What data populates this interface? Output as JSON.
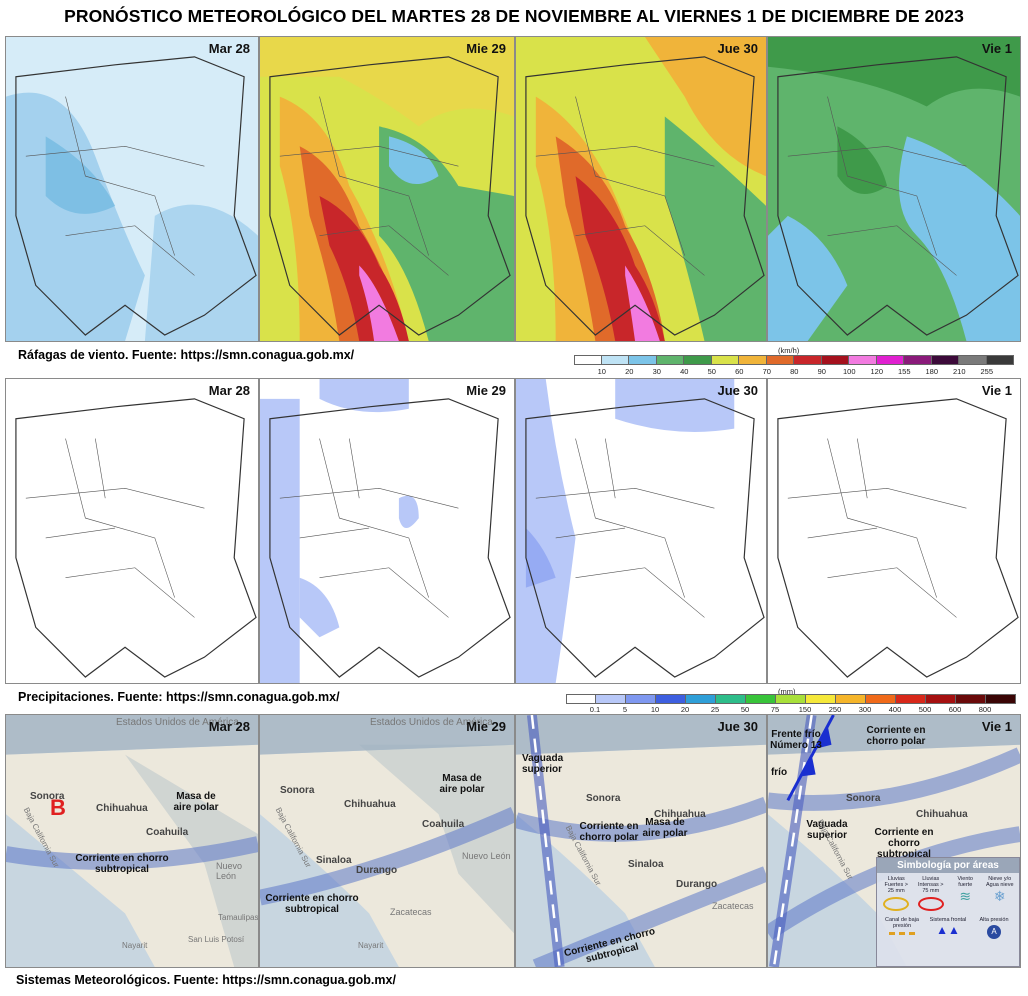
{
  "title": "PRONÓSTICO METEOROLÓGICO DEL MARTES 28 DE NOVIEMBRE AL VIERNES 1 DE DICIEMBRE DE 2023",
  "days": [
    "Mar 28",
    "Mie 29",
    "Jue 30",
    "Vie 1"
  ],
  "wind": {
    "caption": "Ráfagas de viento.  Fuente: https://smn.conagua.gob.mx/",
    "unit": "(km/h)",
    "ticks": [
      "10",
      "20",
      "30",
      "40",
      "50",
      "60",
      "70",
      "80",
      "90",
      "100",
      "120",
      "155",
      "180",
      "210",
      "255"
    ],
    "colors": [
      "#ffffff",
      "#bfe3f5",
      "#7cc4e8",
      "#5fb46c",
      "#3f9a4a",
      "#d9e24a",
      "#f0b43a",
      "#e06a2a",
      "#c8262a",
      "#a5111d",
      "#f27be0",
      "#e020d0",
      "#8a1a7a",
      "#3c0a3a",
      "#7a7a7a",
      "#3a3a3a"
    ]
  },
  "precip": {
    "caption": "Precipitaciones.  Fuente: https://smn.conagua.gob.mx/",
    "unit": "(mm)",
    "ticks": [
      "0.1",
      "5",
      "10",
      "20",
      "25",
      "50",
      "75",
      "150",
      "250",
      "300",
      "400",
      "500",
      "600",
      "800"
    ],
    "colors": [
      "#ffffff",
      "#b8c8f8",
      "#7f98f0",
      "#3e5fe0",
      "#2f9fd8",
      "#2ebd8a",
      "#38c43a",
      "#a8e03a",
      "#f5e83a",
      "#f5b52a",
      "#f06a1a",
      "#d8281a",
      "#a51010",
      "#6a0a0a",
      "#3a0505"
    ]
  },
  "systems": {
    "caption": "Sistemas Meteorológicos.    Fuente: https://smn.conagua.gob.mx/",
    "country": "Estados Unidos de América",
    "panel1": {
      "high": "B",
      "sonora": "Sonora",
      "chihuahua": "Chihuahua",
      "coahuila": "Coahuila",
      "nuevo_leon": "Nuevo León",
      "bcs": "Baja California Sur",
      "masa": "Masa de aire polar",
      "corriente": "Corriente en chorro subtropical",
      "tamaulipas": "Tamaulipas",
      "slp": "San Luis Potosí",
      "nayarit": "Nayarit"
    },
    "panel2": {
      "sonora": "Sonora",
      "chihuahua": "Chihuahua",
      "coahuila": "Coahuila",
      "sinaloa": "Sinaloa",
      "durango": "Durango",
      "nuevo_leon": "Nuevo León",
      "zacatecas": "Zacatecas",
      "nayarit": "Nayarit",
      "bcs": "Baja California Sur",
      "masa": "Masa de aire polar",
      "corriente": "Corriente en chorro subtropical"
    },
    "panel3": {
      "vaguada": "Vaguada superior",
      "corriente_polar": "Corriente en chorro polar",
      "masa": "Masa de aire polar",
      "corriente_sub": "Corriente en chorro subtropical",
      "sonora": "Sonora",
      "chihuahua": "Chihuahua",
      "sinaloa": "Sinaloa",
      "durango": "Durango",
      "bcs": "Baja California Sur",
      "zacatecas": "Zacatecas"
    },
    "panel4": {
      "frente": "Frente frío Número 13",
      "frio": "frío",
      "corriente_polar": "Corriente en chorro polar",
      "vaguada": "Vaguada superior",
      "corriente_sub": "Corriente en chorro subtropical",
      "sonora": "Sonora",
      "chihuahua": "Chihuahua",
      "bcs": "Baja California Sur"
    },
    "symbology": {
      "title": "Simbología por áreas",
      "items": [
        "Lluvias Fuertes > 25 mm",
        "Lluvias Intensas > 75 mm",
        "Viento fuerte",
        "Nieve y/o Agua nieve"
      ],
      "items2": [
        "Canal de baja presión",
        "Sistema frontal",
        "Alta presión"
      ]
    }
  }
}
